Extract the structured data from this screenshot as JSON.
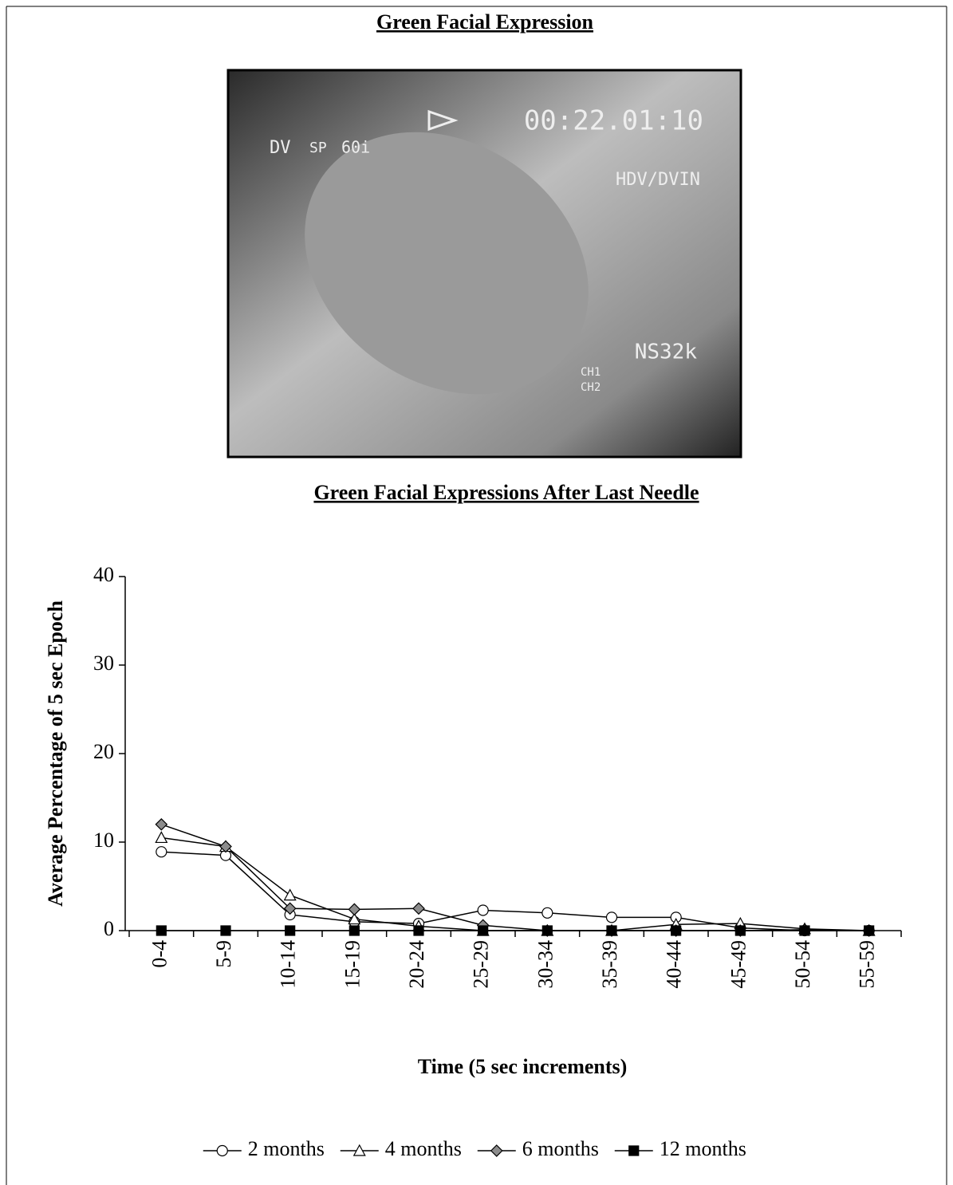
{
  "header": {
    "title": "Green Facial Expression"
  },
  "photo": {
    "format": [
      "DV",
      "SP",
      "60i"
    ],
    "timecode": "00:22.01:10",
    "input": "HDV/DVIN",
    "audio": "NS32k",
    "channels": [
      "CH1",
      "CH2"
    ]
  },
  "chart_data": {
    "type": "line",
    "title": "Green Facial Expressions After Last Needle",
    "y_label": "Average Percentage of 5 sec Epoch",
    "x_label": "Time (5 sec increments)",
    "categories": [
      "0-4",
      "5-9",
      "10-14",
      "15-19",
      "20-24",
      "25-29",
      "30-34",
      "35-39",
      "40-44",
      "45-49",
      "50-54",
      "55-59"
    ],
    "series": [
      {
        "name": "2 months",
        "color": "#ffffff",
        "marker": "circle",
        "values": [
          8.9,
          8.5,
          1.8,
          1.0,
          0.8,
          2.3,
          2.0,
          1.5,
          1.5,
          0.3,
          0,
          0
        ]
      },
      {
        "name": "4 months",
        "color": "#ffffff",
        "marker": "triangle",
        "values": [
          10.5,
          9.5,
          4.0,
          1.3,
          0.5,
          0,
          0,
          0,
          0.7,
          0.8,
          0.2,
          0
        ]
      },
      {
        "name": "6 months",
        "color": "#8c8c8c",
        "marker": "diamond",
        "values": [
          12.0,
          9.5,
          2.5,
          2.4,
          2.5,
          0.6,
          0,
          0,
          0,
          0,
          0.1,
          0
        ]
      },
      {
        "name": "12 months",
        "color": "#000000",
        "marker": "square",
        "values": [
          0,
          0,
          0,
          0,
          0,
          0,
          0,
          0,
          0,
          0,
          0,
          0
        ]
      }
    ],
    "ylim": [
      0,
      40
    ],
    "yticks": [
      0,
      10,
      20,
      30,
      40
    ],
    "grid": false
  }
}
